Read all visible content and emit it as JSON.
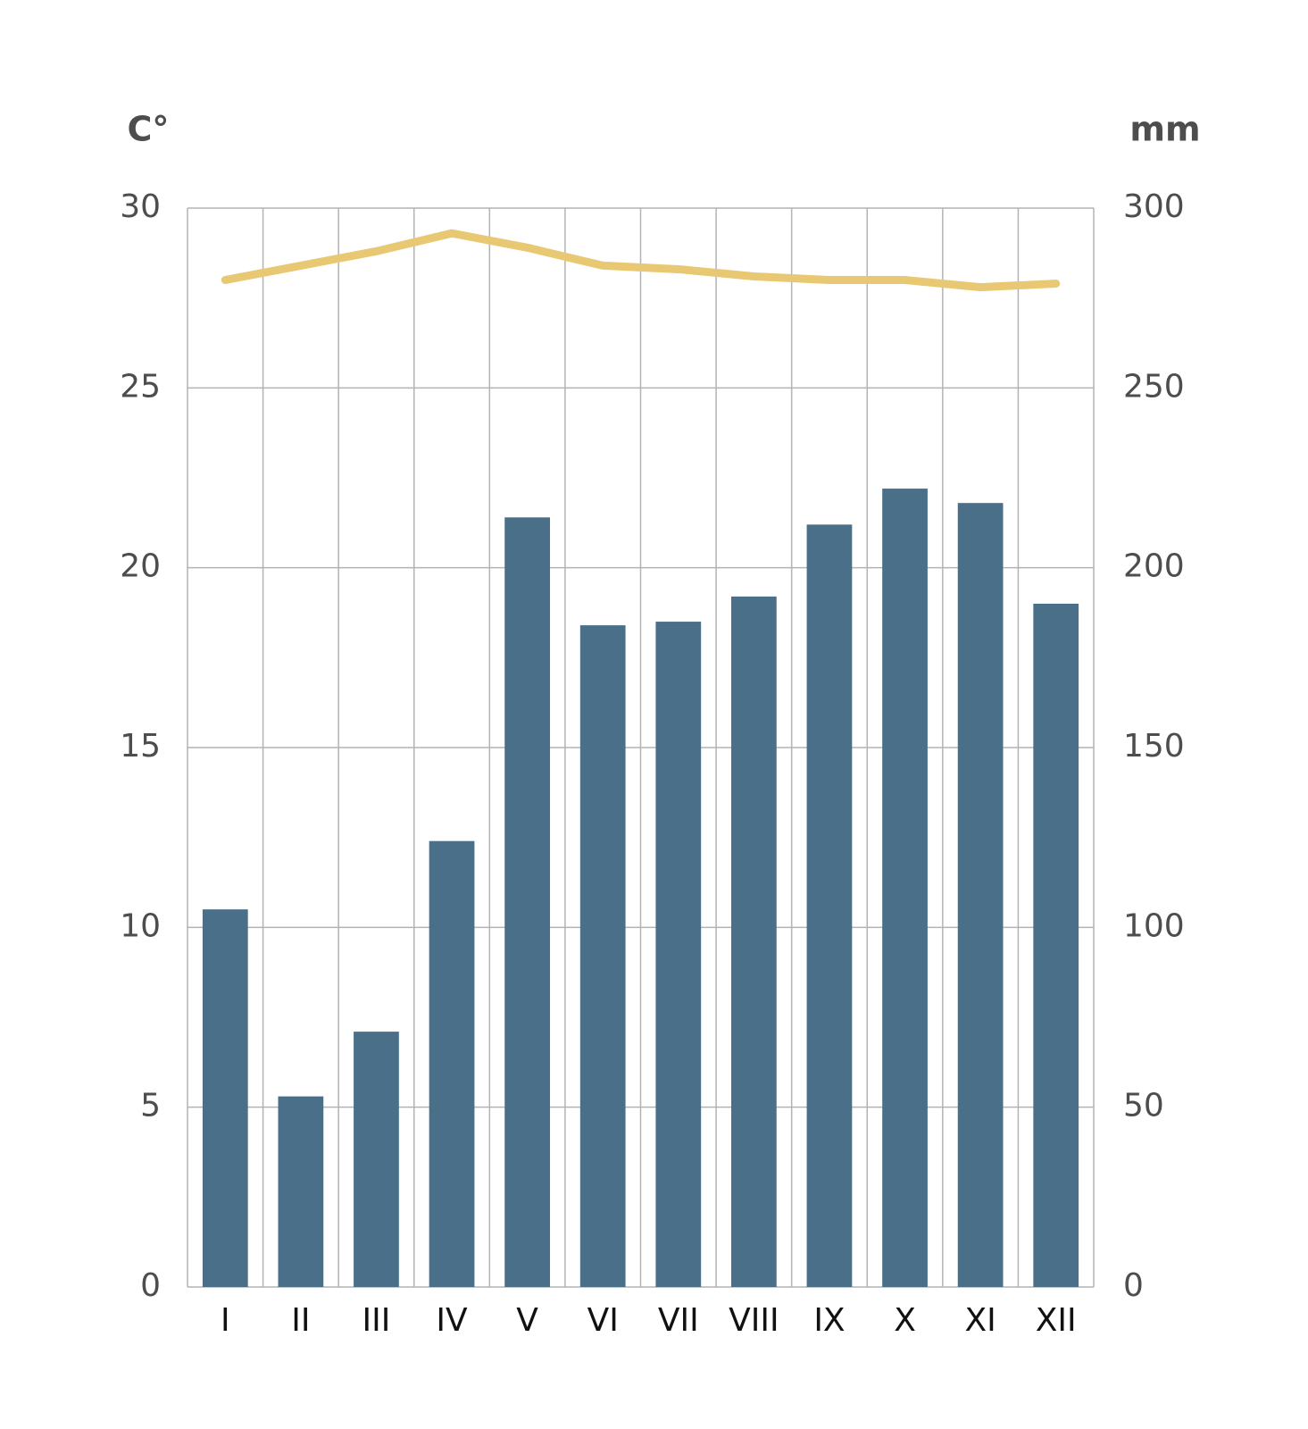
{
  "chart_data": {
    "type": "bar",
    "y_label": "C°",
    "y2_label": "mm",
    "categories": [
      "I",
      "II",
      "III",
      "IV",
      "V",
      "VI",
      "VII",
      "VIII",
      "IX",
      "X",
      "XI",
      "XII"
    ],
    "series": [
      {
        "type": "bar",
        "axis": "y2",
        "color": "#4a7089",
        "values": [
          105,
          53,
          71,
          124,
          214,
          184,
          185,
          192,
          212,
          222,
          218,
          190
        ]
      },
      {
        "type": "line",
        "color": "#e8c872",
        "values": [
          28.0,
          28.4,
          28.8,
          29.3,
          28.9,
          28.4,
          28.3,
          28.1,
          28.0,
          28.0,
          27.8,
          27.9
        ]
      }
    ],
    "ylim": [
      0,
      30
    ],
    "yticks": [
      0,
      5,
      10,
      15,
      20,
      25,
      30
    ],
    "y2lim": [
      0,
      300
    ],
    "y2ticks": [
      0,
      50,
      100,
      150,
      200,
      250,
      300
    ],
    "grid": true
  }
}
